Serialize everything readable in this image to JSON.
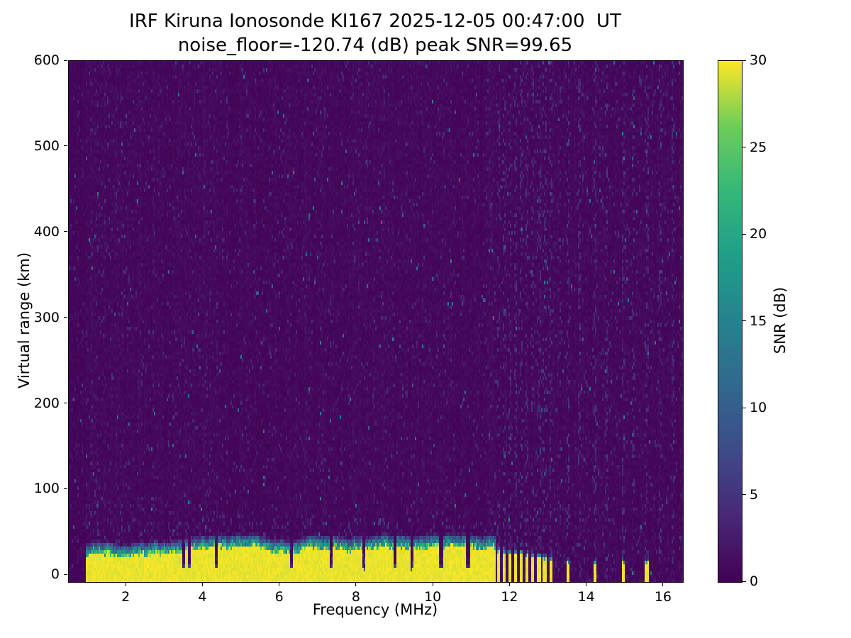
{
  "figure": {
    "title": "IRF Kiruna Ionosonde KI167 2025-12-05 00:47:00  UT",
    "subtitle": "noise_floor=-120.74 (dB) peak SNR=99.65"
  },
  "chart_data": {
    "type": "heatmap",
    "title": "IRF Kiruna Ionosonde KI167 2025-12-05 00:47:00  UT",
    "subtitle": "noise_floor=-120.74 (dB) peak SNR=99.65",
    "xlabel": "Frequency (MHz)",
    "ylabel": "Virtual range (km)",
    "xlim": [
      0.5,
      16.5
    ],
    "ylim": [
      -8,
      600
    ],
    "x_ticks": [
      2,
      4,
      6,
      8,
      10,
      12,
      14,
      16
    ],
    "y_ticks": [
      0,
      100,
      200,
      300,
      400,
      500,
      600
    ],
    "grid": false,
    "colorbar": {
      "label": "SNR (dB)",
      "ticks": [
        0,
        5,
        10,
        15,
        20,
        25,
        30
      ],
      "range": [
        0,
        30
      ],
      "colormap": "viridis"
    },
    "colormap_stops": [
      [
        0.0,
        "#440154"
      ],
      [
        0.125,
        "#482878"
      ],
      [
        0.25,
        "#3e4a89"
      ],
      [
        0.375,
        "#31688e"
      ],
      [
        0.5,
        "#26828e"
      ],
      [
        0.625,
        "#1f9e89"
      ],
      [
        0.75,
        "#35b779"
      ],
      [
        0.875,
        "#6dcd59"
      ],
      [
        1.0,
        "#fde725"
      ]
    ],
    "stats": {
      "noise_floor_db": -120.74,
      "peak_snr_db": 99.65,
      "station": "IRF Kiruna Ionosonde KI167",
      "timestamp_ut": "2025-12-05 00:47:00"
    },
    "features": {
      "description": "Ionogram: dark viridis noise background (SNR ~0-3 dB) with sparse blue/teal speckles; a saturated yellow ground-clutter echo band at 0-30 km virtual range spanning ~0.95-11.6 MHz with a teal fade above it and narrow dark notches; between ~11.65 and 13.1 MHz the band breaks into regular vertical stripes; isolated saturated columns near 13.5, 14.2, 14.95 and 15.55 MHz; faint elevated-noise vertical lines above 11.6 MHz.",
      "background_snr_db": [
        0,
        3
      ],
      "ground_clutter_band": {
        "freq_mhz": [
          0.93,
          11.62
        ],
        "solid_top_km_range": [
          19,
          33
        ],
        "fade_top_km": 45,
        "snr_db": 30
      },
      "band_notches_mhz": [
        3.5,
        3.64,
        4.35,
        6.3,
        7.35,
        8.2,
        9.0,
        9.45,
        10.2,
        10.9
      ],
      "striped_band": {
        "freq_mhz": [
          11.66,
          13.1
        ],
        "period_mhz": 0.15,
        "duty": 0.52,
        "top_km_start": 26,
        "top_km_end": 16
      },
      "isolated_columns_mhz": [
        13.5,
        14.2,
        14.95,
        15.55
      ],
      "faint_noise_lines_mhz": [
        13.3,
        13.8,
        14.5,
        15.2,
        15.9,
        16.25
      ]
    },
    "render": {
      "seed": 20251205,
      "grid_cols": 433,
      "grid_rows": 147
    }
  }
}
